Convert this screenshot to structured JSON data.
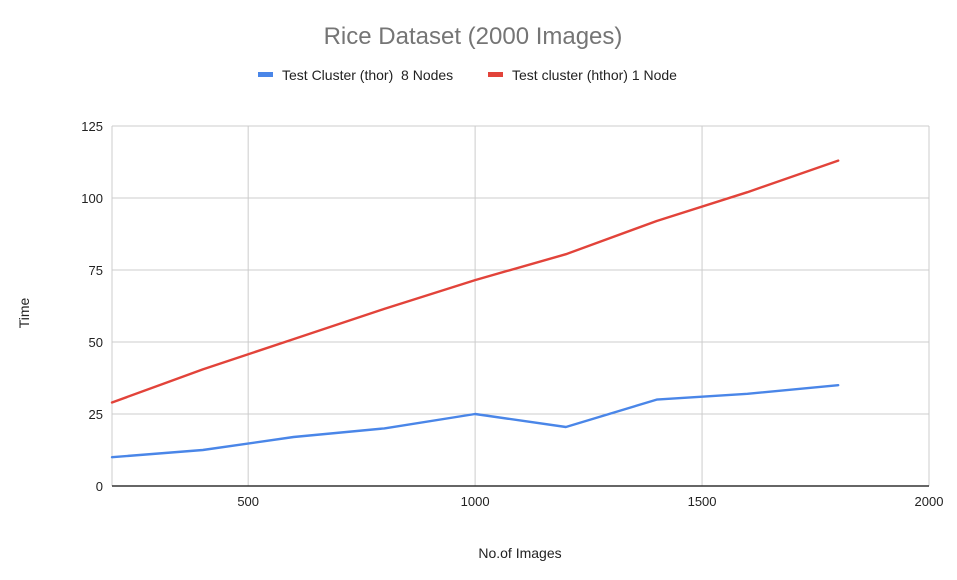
{
  "chart_data": {
    "type": "line",
    "title": "Rice Dataset (2000 Images)",
    "xlabel": "No.of Images",
    "ylabel": "Time",
    "xlim": [
      200,
      2000
    ],
    "ylim": [
      0,
      125
    ],
    "x_ticks": [
      500,
      1000,
      1500,
      2000
    ],
    "y_ticks": [
      0,
      25,
      50,
      75,
      100,
      125
    ],
    "grid": true,
    "legend_position": "top",
    "x": [
      200,
      400,
      600,
      800,
      1000,
      1200,
      1400,
      1600,
      1800
    ],
    "series": [
      {
        "name": "Test Cluster (thor)  8 Nodes",
        "color": "#4a86e8",
        "values": [
          10,
          12.5,
          17,
          20,
          25,
          20.5,
          30,
          32,
          35
        ]
      },
      {
        "name": "Test cluster (hthor) 1 Node",
        "color": "#e2433a",
        "values": [
          29,
          40.5,
          51,
          61.5,
          71.5,
          80.5,
          92,
          102,
          113
        ]
      }
    ]
  }
}
